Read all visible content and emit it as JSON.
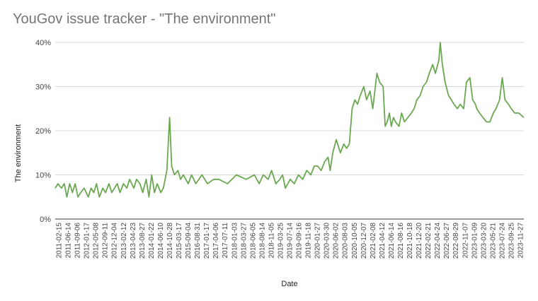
{
  "chart_data": {
    "type": "line",
    "title": "YouGov issue tracker - \"The environment\"",
    "xlabel": "Date",
    "ylabel": "The environment",
    "ylim": [
      0,
      40
    ],
    "y_ticks": [
      "0%",
      "10%",
      "20%",
      "30%",
      "40%"
    ],
    "grid": true,
    "legend": "none",
    "line_color": "#6aa84f",
    "x_date_range": [
      "2011-02-15",
      "2024-02-28"
    ],
    "x_tick_labels": [
      "2011-02-15",
      "2011-06-14",
      "2011-09-06",
      "2012-01-17",
      "2012-05-08",
      "2012-09-11",
      "2012-12-04",
      "2013-02-12",
      "2013-04-23",
      "2013-08-27",
      "2014-01-22",
      "2014-06-10",
      "2014-10-28",
      "2015-03-17",
      "2015-09-04",
      "2016-08-31",
      "2017-01-17",
      "2017-04-06",
      "2017-07-11",
      "2018-01-03",
      "2018-03-27",
      "2018-06-05",
      "2018-08-14",
      "2018-11-05",
      "2019-03-25",
      "2019-07-14",
      "2019-09-16",
      "2019-11-18",
      "2020-01-27",
      "2020-03-30",
      "2020-06-02",
      "2020-08-03",
      "2020-10-05",
      "2020-12-07",
      "2021-02-08",
      "2021-04-12",
      "2021-06-14",
      "2021-08-16",
      "2021-10-18",
      "2021-12-20",
      "2022-02-21",
      "2022-04-24",
      "2022-06-27",
      "2022-08-29",
      "2022-11-07",
      "2023-01-09",
      "2023-03-20",
      "2023-05-21",
      "2023-07-24",
      "2023-09-25",
      "2023-11-27"
    ],
    "series": [
      {
        "points": [
          [
            "2011-02-15",
            7
          ],
          [
            "2011-03-15",
            8
          ],
          [
            "2011-04-19",
            7
          ],
          [
            "2011-05-17",
            8
          ],
          [
            "2011-06-14",
            5
          ],
          [
            "2011-07-12",
            8
          ],
          [
            "2011-08-09",
            6
          ],
          [
            "2011-09-06",
            8
          ],
          [
            "2011-10-04",
            5
          ],
          [
            "2011-11-01",
            6
          ],
          [
            "2011-12-06",
            7
          ],
          [
            "2012-01-17",
            5
          ],
          [
            "2012-02-14",
            7
          ],
          [
            "2012-03-13",
            6
          ],
          [
            "2012-04-10",
            8
          ],
          [
            "2012-05-08",
            5
          ],
          [
            "2012-06-12",
            7
          ],
          [
            "2012-07-10",
            6
          ],
          [
            "2012-08-14",
            8
          ],
          [
            "2012-09-11",
            6
          ],
          [
            "2012-10-09",
            7
          ],
          [
            "2012-11-06",
            8
          ],
          [
            "2012-12-04",
            6
          ],
          [
            "2013-01-08",
            8
          ],
          [
            "2013-02-12",
            7
          ],
          [
            "2013-03-12",
            9
          ],
          [
            "2013-04-23",
            7
          ],
          [
            "2013-05-21",
            9
          ],
          [
            "2013-06-25",
            8
          ],
          [
            "2013-07-23",
            6
          ],
          [
            "2013-08-27",
            9
          ],
          [
            "2013-09-24",
            5
          ],
          [
            "2013-10-22",
            10
          ],
          [
            "2013-11-19",
            6
          ],
          [
            "2013-12-17",
            8
          ],
          [
            "2014-01-22",
            6
          ],
          [
            "2014-02-18",
            7
          ],
          [
            "2014-03-25",
            11
          ],
          [
            "2014-04-22",
            23
          ],
          [
            "2014-05-13",
            12
          ],
          [
            "2014-06-10",
            10
          ],
          [
            "2014-07-15",
            11
          ],
          [
            "2014-08-12",
            9
          ],
          [
            "2014-09-09",
            10
          ],
          [
            "2014-10-28",
            8
          ],
          [
            "2014-12-02",
            10
          ],
          [
            "2015-01-13",
            8
          ],
          [
            "2015-03-17",
            10
          ],
          [
            "2015-05-12",
            8
          ],
          [
            "2015-07-14",
            9
          ],
          [
            "2015-09-04",
            9
          ],
          [
            "2015-12-01",
            8
          ],
          [
            "2016-03-01",
            10
          ],
          [
            "2016-06-07",
            9
          ],
          [
            "2016-08-31",
            10
          ],
          [
            "2016-10-18",
            8
          ],
          [
            "2016-11-29",
            10
          ],
          [
            "2017-01-17",
            9
          ],
          [
            "2017-02-21",
            11
          ],
          [
            "2017-04-06",
            8
          ],
          [
            "2017-05-16",
            9
          ],
          [
            "2017-06-13",
            10
          ],
          [
            "2017-07-11",
            7
          ],
          [
            "2017-08-29",
            9
          ],
          [
            "2017-10-10",
            8
          ],
          [
            "2017-11-21",
            10
          ],
          [
            "2018-01-03",
            9
          ],
          [
            "2018-02-13",
            11
          ],
          [
            "2018-03-27",
            10
          ],
          [
            "2018-05-01",
            12
          ],
          [
            "2018-06-05",
            12
          ],
          [
            "2018-07-10",
            11
          ],
          [
            "2018-08-14",
            13
          ],
          [
            "2018-09-18",
            14
          ],
          [
            "2018-10-09",
            11
          ],
          [
            "2018-11-05",
            15
          ],
          [
            "2018-12-10",
            18
          ],
          [
            "2019-01-21",
            15
          ],
          [
            "2019-02-25",
            17
          ],
          [
            "2019-03-25",
            16
          ],
          [
            "2019-04-22",
            17
          ],
          [
            "2019-05-20",
            25
          ],
          [
            "2019-06-17",
            27
          ],
          [
            "2019-07-14",
            26
          ],
          [
            "2019-08-12",
            28
          ],
          [
            "2019-09-16",
            30
          ],
          [
            "2019-10-14",
            27
          ],
          [
            "2019-11-18",
            29
          ],
          [
            "2019-12-16",
            25
          ],
          [
            "2020-01-27",
            33
          ],
          [
            "2020-02-24",
            31
          ],
          [
            "2020-03-30",
            30
          ],
          [
            "2020-04-20",
            21
          ],
          [
            "2020-05-11",
            22
          ],
          [
            "2020-06-02",
            24
          ],
          [
            "2020-06-22",
            21
          ],
          [
            "2020-07-13",
            23
          ],
          [
            "2020-08-03",
            22
          ],
          [
            "2020-09-07",
            21
          ],
          [
            "2020-10-05",
            24
          ],
          [
            "2020-11-02",
            22
          ],
          [
            "2020-12-07",
            23
          ],
          [
            "2021-01-11",
            24
          ],
          [
            "2021-02-08",
            25
          ],
          [
            "2021-03-08",
            27
          ],
          [
            "2021-04-12",
            28
          ],
          [
            "2021-05-10",
            30
          ],
          [
            "2021-06-14",
            31
          ],
          [
            "2021-07-12",
            33
          ],
          [
            "2021-08-16",
            35
          ],
          [
            "2021-09-13",
            33
          ],
          [
            "2021-10-18",
            36
          ],
          [
            "2021-11-01",
            40
          ],
          [
            "2021-11-22",
            35
          ],
          [
            "2021-12-20",
            31
          ],
          [
            "2022-01-24",
            28
          ],
          [
            "2022-02-21",
            27
          ],
          [
            "2022-03-21",
            26
          ],
          [
            "2022-04-24",
            25
          ],
          [
            "2022-05-23",
            26
          ],
          [
            "2022-06-27",
            25
          ],
          [
            "2022-07-25",
            31
          ],
          [
            "2022-08-29",
            32
          ],
          [
            "2022-09-26",
            27
          ],
          [
            "2022-10-24",
            26
          ],
          [
            "2022-11-07",
            25
          ],
          [
            "2022-12-05",
            24
          ],
          [
            "2023-01-09",
            23
          ],
          [
            "2023-02-13",
            22
          ],
          [
            "2023-03-20",
            22
          ],
          [
            "2023-04-24",
            24
          ],
          [
            "2023-05-21",
            25
          ],
          [
            "2023-06-26",
            27
          ],
          [
            "2023-07-24",
            32
          ],
          [
            "2023-08-21",
            27
          ],
          [
            "2023-09-25",
            26
          ],
          [
            "2023-10-23",
            25
          ],
          [
            "2023-11-27",
            24
          ],
          [
            "2024-01-08",
            24
          ],
          [
            "2024-02-28",
            23
          ]
        ]
      }
    ]
  }
}
